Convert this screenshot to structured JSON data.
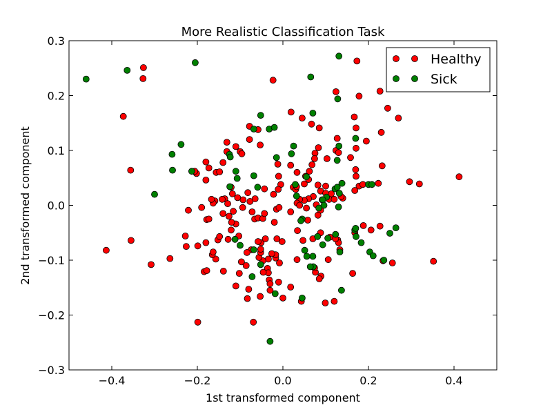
{
  "chart_data": {
    "type": "scatter",
    "title": "More Realistic Classification Task",
    "xlabel": "1st transformed component",
    "ylabel": "2nd transformed component",
    "xlim": [
      -0.5,
      0.5
    ],
    "ylim": [
      -0.3,
      0.3
    ],
    "xticks": [
      -0.4,
      -0.2,
      0.0,
      0.2,
      0.4
    ],
    "xtick_labels": [
      "−0.4",
      "−0.2",
      "0.0",
      "0.2",
      "0.4"
    ],
    "yticks": [
      -0.3,
      -0.2,
      -0.1,
      0.0,
      0.1,
      0.2,
      0.3
    ],
    "ytick_labels": [
      "−0.3",
      "−0.2",
      "−0.1",
      "0.0",
      "0.1",
      "0.2",
      "0.3"
    ],
    "grid": false,
    "legend_position": "top-right",
    "series": [
      {
        "name": "Healthy",
        "color": "#ff0000",
        "points": [
          [
            -0.326,
            0.251
          ],
          [
            -0.327,
            0.231
          ],
          [
            -0.373,
            0.162
          ],
          [
            -0.356,
            0.064
          ],
          [
            -0.413,
            -0.082
          ],
          [
            -0.355,
            -0.064
          ],
          [
            -0.308,
            -0.108
          ],
          [
            -0.264,
            -0.097
          ],
          [
            -0.226,
            -0.075
          ],
          [
            -0.228,
            -0.056
          ],
          [
            -0.199,
            -0.074
          ],
          [
            -0.178,
            -0.026
          ],
          [
            -0.173,
            -0.025
          ],
          [
            -0.221,
            -0.009
          ],
          [
            -0.202,
            0.058
          ],
          [
            -0.206,
            0.062
          ],
          [
            -0.18,
            0.079
          ],
          [
            -0.173,
            0.068
          ],
          [
            -0.18,
            0.046
          ],
          [
            -0.156,
            0.06
          ],
          [
            -0.148,
            0.061
          ],
          [
            -0.14,
            0.078
          ],
          [
            -0.131,
            0.098
          ],
          [
            -0.131,
            0.115
          ],
          [
            -0.11,
            0.107
          ],
          [
            -0.1,
            0.098
          ],
          [
            -0.096,
            0.094
          ],
          [
            -0.078,
            0.12
          ],
          [
            -0.078,
            0.144
          ],
          [
            -0.058,
            0.138
          ],
          [
            -0.053,
            0.11
          ],
          [
            -0.023,
            0.228
          ],
          [
            0.019,
            0.17
          ],
          [
            0.045,
            0.159
          ],
          [
            0.067,
            0.148
          ],
          [
            0.085,
            0.141
          ],
          [
            0.124,
            0.207
          ],
          [
            0.178,
            0.199
          ],
          [
            0.173,
            0.263
          ],
          [
            0.227,
            0.208
          ],
          [
            0.245,
            0.177
          ],
          [
            0.27,
            0.159
          ],
          [
            0.23,
            0.133
          ],
          [
            0.195,
            0.117
          ],
          [
            0.171,
            0.141
          ],
          [
            0.167,
            0.161
          ],
          [
            0.171,
            0.104
          ],
          [
            0.158,
            0.087
          ],
          [
            0.127,
            0.122
          ],
          [
            0.124,
            0.1
          ],
          [
            0.13,
            0.096
          ],
          [
            0.103,
            0.085
          ],
          [
            0.083,
            0.105
          ],
          [
            0.075,
            0.095
          ],
          [
            0.074,
            0.085
          ],
          [
            0.068,
            0.074
          ],
          [
            0.062,
            0.062
          ],
          [
            0.053,
            0.053
          ],
          [
            0.033,
            0.06
          ],
          [
            0.018,
            0.073
          ],
          [
            -0.012,
            0.075
          ],
          [
            -0.01,
            0.053
          ],
          [
            -0.005,
            0.038
          ],
          [
            0.024,
            0.033
          ],
          [
            0.03,
            0.029
          ],
          [
            0.032,
            0.034
          ],
          [
            0.05,
            0.039
          ],
          [
            0.06,
            0.047
          ],
          [
            0.082,
            0.037
          ],
          [
            0.088,
            0.026
          ],
          [
            0.1,
            0.035
          ],
          [
            0.1,
            0.022
          ],
          [
            0.113,
            0.021
          ],
          [
            0.108,
            0.011
          ],
          [
            0.092,
            0.01
          ],
          [
            0.071,
            0.016
          ],
          [
            0.06,
            0.012
          ],
          [
            0.05,
            0.009
          ],
          [
            0.039,
            0.011
          ],
          [
            0.033,
            0.004
          ],
          [
            0.039,
            0.0
          ],
          [
            0.055,
            -0.005
          ],
          [
            0.078,
            0.001
          ],
          [
            0.088,
            -0.009
          ],
          [
            0.082,
            -0.018
          ],
          [
            0.12,
            0.011
          ],
          [
            0.14,
            0.013
          ],
          [
            0.136,
            0.016
          ],
          [
            0.168,
            0.027
          ],
          [
            0.171,
            0.053
          ],
          [
            0.17,
            0.065
          ],
          [
            0.178,
            0.035
          ],
          [
            0.187,
            0.038
          ],
          [
            0.223,
            0.04
          ],
          [
            0.232,
            0.072
          ],
          [
            0.296,
            0.043
          ],
          [
            0.319,
            0.039
          ],
          [
            0.412,
            0.052
          ],
          [
            0.352,
            -0.102
          ],
          [
            0.256,
            -0.105
          ],
          [
            0.234,
            -0.101
          ],
          [
            0.227,
            -0.038
          ],
          [
            0.206,
            -0.045
          ],
          [
            0.188,
            -0.037
          ],
          [
            0.168,
            -0.05
          ],
          [
            0.128,
            -0.063
          ],
          [
            0.13,
            -0.068
          ],
          [
            0.133,
            -0.081
          ],
          [
            0.163,
            -0.124
          ],
          [
            0.12,
            -0.175
          ],
          [
            0.099,
            -0.178
          ],
          [
            0.089,
            -0.129
          ],
          [
            0.085,
            -0.134
          ],
          [
            0.076,
            -0.122
          ],
          [
            0.074,
            -0.114
          ],
          [
            0.07,
            -0.061
          ],
          [
            0.088,
            -0.05
          ],
          [
            0.047,
            -0.064
          ],
          [
            0.034,
            -0.046
          ],
          [
            0.033,
            -0.099
          ],
          [
            0.043,
            -0.175
          ],
          [
            0.018,
            -0.149
          ],
          [
            0.0,
            -0.169
          ],
          [
            -0.01,
            -0.14
          ],
          [
            -0.008,
            -0.105
          ],
          [
            -0.017,
            -0.096
          ],
          [
            -0.017,
            -0.09
          ],
          [
            -0.002,
            -0.066
          ],
          [
            -0.014,
            -0.061
          ],
          [
            -0.026,
            -0.088
          ],
          [
            -0.034,
            -0.098
          ],
          [
            -0.036,
            -0.115
          ],
          [
            -0.034,
            -0.123
          ],
          [
            -0.032,
            -0.136
          ],
          [
            -0.03,
            -0.143
          ],
          [
            -0.03,
            -0.155
          ],
          [
            -0.046,
            -0.122
          ],
          [
            -0.047,
            -0.101
          ],
          [
            -0.056,
            -0.095
          ],
          [
            -0.052,
            -0.086
          ],
          [
            -0.052,
            -0.08
          ],
          [
            -0.051,
            -0.068
          ],
          [
            -0.058,
            -0.066
          ],
          [
            -0.041,
            -0.061
          ],
          [
            -0.074,
            -0.081
          ],
          [
            -0.084,
            -0.086
          ],
          [
            -0.097,
            -0.103
          ],
          [
            -0.086,
            -0.11
          ],
          [
            -0.102,
            -0.124
          ],
          [
            -0.11,
            -0.147
          ],
          [
            -0.08,
            -0.153
          ],
          [
            -0.083,
            -0.17
          ],
          [
            -0.053,
            -0.166
          ],
          [
            -0.069,
            -0.213
          ],
          [
            -0.199,
            -0.213
          ],
          [
            -0.184,
            -0.121
          ],
          [
            -0.178,
            -0.119
          ],
          [
            -0.139,
            -0.12
          ],
          [
            -0.157,
            -0.098
          ],
          [
            -0.165,
            -0.09
          ],
          [
            -0.163,
            -0.085
          ],
          [
            -0.18,
            -0.068
          ],
          [
            -0.152,
            -0.063
          ],
          [
            -0.148,
            -0.057
          ],
          [
            -0.128,
            -0.062
          ],
          [
            -0.121,
            -0.045
          ],
          [
            -0.103,
            -0.056
          ],
          [
            -0.11,
            -0.034
          ],
          [
            -0.12,
            -0.031
          ],
          [
            -0.126,
            -0.02
          ],
          [
            -0.14,
            -0.015
          ],
          [
            -0.116,
            -0.011
          ],
          [
            -0.094,
            -0.004
          ],
          [
            -0.072,
            -0.012
          ],
          [
            -0.066,
            -0.025
          ],
          [
            -0.058,
            -0.023
          ],
          [
            -0.047,
            -0.024
          ],
          [
            -0.043,
            -0.015
          ],
          [
            -0.02,
            -0.031
          ],
          [
            -0.015,
            -0.007
          ],
          [
            -0.009,
            -0.004
          ],
          [
            -0.022,
            0.02
          ],
          [
            -0.011,
            0.029
          ],
          [
            -0.043,
            0.03
          ],
          [
            -0.065,
            0.012
          ],
          [
            -0.077,
            0.007
          ],
          [
            -0.093,
            0.01
          ],
          [
            -0.082,
            0.023
          ],
          [
            -0.106,
            0.014
          ],
          [
            -0.118,
            0.021
          ],
          [
            -0.121,
            0.033
          ],
          [
            -0.136,
            0.012
          ],
          [
            -0.129,
            0.003
          ],
          [
            -0.142,
            0.011
          ],
          [
            -0.159,
            0.008
          ],
          [
            -0.163,
            0.004
          ],
          [
            -0.167,
            0.011
          ],
          [
            -0.19,
            -0.004
          ],
          [
            0.018,
            -0.012
          ],
          [
            0.058,
            -0.027
          ],
          [
            0.106,
            -0.099
          ],
          [
            0.11,
            -0.058
          ],
          [
            0.123,
            -0.061
          ]
        ]
      },
      {
        "name": "Sick",
        "color": "#008000",
        "points": [
          [
            -0.46,
            0.23
          ],
          [
            -0.364,
            0.246
          ],
          [
            -0.205,
            0.26
          ],
          [
            -0.259,
            0.093
          ],
          [
            -0.238,
            0.111
          ],
          [
            -0.258,
            0.064
          ],
          [
            -0.213,
            0.062
          ],
          [
            -0.3,
            0.02
          ],
          [
            -0.125,
            0.093
          ],
          [
            -0.123,
            0.088
          ],
          [
            -0.11,
            0.062
          ],
          [
            -0.107,
            0.049
          ],
          [
            -0.124,
            0.034
          ],
          [
            -0.052,
            0.164
          ],
          [
            -0.032,
            0.139
          ],
          [
            -0.02,
            0.142
          ],
          [
            -0.068,
            0.139
          ],
          [
            -0.015,
            0.087
          ],
          [
            -0.068,
            0.054
          ],
          [
            -0.059,
            0.033
          ],
          [
            0.025,
            0.108
          ],
          [
            0.02,
            0.094
          ],
          [
            0.029,
            0.038
          ],
          [
            0.032,
            0.017
          ],
          [
            0.065,
            0.234
          ],
          [
            0.131,
            0.272
          ],
          [
            0.128,
            0.194
          ],
          [
            0.07,
            0.168
          ],
          [
            0.131,
            0.108
          ],
          [
            0.17,
            0.122
          ],
          [
            0.127,
            0.082
          ],
          [
            0.055,
            0.052
          ],
          [
            0.122,
            0.03
          ],
          [
            0.138,
            0.04
          ],
          [
            0.127,
            0.033
          ],
          [
            0.2,
            0.038
          ],
          [
            0.208,
            0.038
          ],
          [
            0.132,
            0.022
          ],
          [
            0.102,
            0.015
          ],
          [
            0.093,
            0.01
          ],
          [
            0.13,
            -0.003
          ],
          [
            0.096,
            0.0
          ],
          [
            0.084,
            -0.005
          ],
          [
            0.045,
            -0.025
          ],
          [
            0.042,
            -0.028
          ],
          [
            0.105,
            -0.06
          ],
          [
            0.093,
            -0.072
          ],
          [
            0.081,
            -0.057
          ],
          [
            0.133,
            -0.085
          ],
          [
            0.123,
            -0.053
          ],
          [
            0.168,
            -0.045
          ],
          [
            0.171,
            -0.057
          ],
          [
            0.17,
            -0.042
          ],
          [
            0.183,
            -0.068
          ],
          [
            0.203,
            -0.085
          ],
          [
            0.211,
            -0.092
          ],
          [
            0.236,
            -0.1
          ],
          [
            0.25,
            -0.051
          ],
          [
            0.264,
            -0.041
          ],
          [
            0.07,
            -0.093
          ],
          [
            0.071,
            -0.112
          ],
          [
            0.064,
            -0.112
          ],
          [
            0.056,
            -0.093
          ],
          [
            0.051,
            -0.082
          ],
          [
            0.137,
            -0.155
          ],
          [
            0.045,
            -0.169
          ],
          [
            -0.03,
            -0.248
          ],
          [
            -0.018,
            -0.161
          ],
          [
            -0.072,
            -0.13
          ],
          [
            -0.068,
            -0.081
          ],
          [
            -0.052,
            -0.108
          ],
          [
            -0.1,
            -0.073
          ],
          [
            -0.112,
            -0.062
          ]
        ]
      }
    ]
  }
}
